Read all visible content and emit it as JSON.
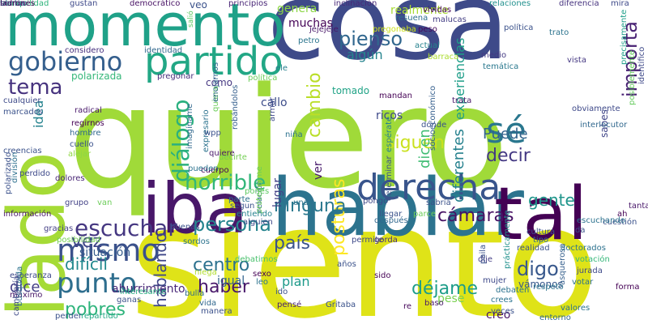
{
  "word_cloud": {
    "words": [
      {
        "text": "quiero",
        "color": "#a0da39",
        "rot": 0
      },
      {
        "text": "siento",
        "color": "#dfe318",
        "rot": 0
      },
      {
        "text": "cosa",
        "color": "#3e4a89",
        "rot": 0
      },
      {
        "text": "hablar",
        "color": "#2c738e",
        "rot": 0
      },
      {
        "text": "momento",
        "color": "#1fa188",
        "rot": 0
      },
      {
        "text": "iba",
        "color": "#481769",
        "rot": 0
      },
      {
        "text": "lado",
        "color": "#a5db36",
        "rot": -90
      },
      {
        "text": "tal",
        "color": "#440154",
        "rot": 0
      },
      {
        "text": "partido",
        "color": "#22a785",
        "rot": 0
      },
      {
        "text": "derecha",
        "color": "#39558c",
        "rot": 0
      },
      {
        "text": "gobierno",
        "color": "#355f8d",
        "rot": 0
      },
      {
        "text": "mismo",
        "color": "#3b518b",
        "rot": 0
      },
      {
        "text": "punto",
        "color": "#2e6e8e",
        "rot": 0
      },
      {
        "text": "sé",
        "color": "#2a778e",
        "rot": 0
      },
      {
        "text": "tema",
        "color": "#46327e",
        "rot": 0
      },
      {
        "text": "importa",
        "color": "#482173",
        "rot": -90
      },
      {
        "text": "diálogo",
        "color": "#2ab07f",
        "rot": -90
      },
      {
        "text": "escuchar",
        "color": "#453781",
        "rot": 0
      },
      {
        "text": "persona",
        "color": "#25848e",
        "rot": 0
      },
      {
        "text": "hablando",
        "color": "#3f4788",
        "rot": -90
      },
      {
        "text": "horrible",
        "color": "#32b67a",
        "rot": 0
      },
      {
        "text": "pienso",
        "color": "#31678e",
        "rot": 0
      },
      {
        "text": "posturas",
        "color": "#fde725",
        "rot": -90
      },
      {
        "text": "cambio",
        "color": "#bade28",
        "rot": -90
      },
      {
        "text": "siguen",
        "color": "#cae11f",
        "rot": 0
      },
      {
        "text": "decir",
        "color": "#443983",
        "rot": 0
      },
      {
        "text": "Puede",
        "color": "#33638d",
        "rot": 0
      },
      {
        "text": "gente",
        "color": "#1f958b",
        "rot": 0
      },
      {
        "text": "ninguna",
        "color": "#2a788e",
        "rot": 0
      },
      {
        "text": "país",
        "color": "#3a538b",
        "rot": 0
      },
      {
        "text": "cámaras",
        "color": "#471365",
        "rot": 0
      },
      {
        "text": "centro",
        "color": "#2c718e",
        "rot": 0
      },
      {
        "text": "digo",
        "color": "#38588c",
        "rot": 0
      },
      {
        "text": "déjame",
        "color": "#1e9d89",
        "rot": 0
      },
      {
        "text": "pobres",
        "color": "#2fb47c",
        "rot": 0
      },
      {
        "text": "difícil",
        "color": "#23898e",
        "rot": 0
      },
      {
        "text": "vez",
        "color": "#404588",
        "rot": 0
      },
      {
        "text": "haber",
        "color": "#48186a",
        "rot": 0
      },
      {
        "text": "dice",
        "color": "#433e85",
        "rot": 0
      },
      {
        "text": "idea",
        "color": "#25838e",
        "rot": -90
      },
      {
        "text": "experiencias",
        "color": "#1f9e89",
        "rot": -90
      },
      {
        "text": "diferentes",
        "color": "#26818e",
        "rot": -90
      },
      {
        "text": "dicen",
        "color": "#3fbc73",
        "rot": -90
      },
      {
        "text": "algún",
        "color": "#25848e",
        "rot": 0
      },
      {
        "text": "genera",
        "color": "#8bd646",
        "rot": 0
      },
      {
        "text": "muchas",
        "color": "#450457",
        "rot": 0
      },
      {
        "text": "callo",
        "color": "#3d4d8a",
        "rot": 0
      },
      {
        "text": "situación",
        "color": "#365c8d",
        "rot": 0
      },
      {
        "text": "plan",
        "color": "#1f9a8a",
        "rot": 0
      },
      {
        "text": "creo",
        "color": "#481467",
        "rot": 0
      },
      {
        "text": "pese",
        "color": "#7ad151",
        "rot": 0
      },
      {
        "text": "ver",
        "color": "#481a6c",
        "rot": -90
      },
      {
        "text": "ricos",
        "color": "#3e4989",
        "rot": 0
      },
      {
        "text": "lugar",
        "color": "#424086",
        "rot": -90
      },
      {
        "text": "vámonos",
        "color": "#38588c",
        "rot": 0
      },
      {
        "text": "aburrimiento",
        "color": "#482878",
        "rot": 0
      },
      {
        "text": "igual",
        "color": "#33638d",
        "rot": 0
      },
      {
        "text": "sabes",
        "color": "#404588",
        "rot": -90
      },
      {
        "text": "realmente",
        "color": "#a8db34",
        "rot": 0
      },
      {
        "text": "polarizada",
        "color": "#35b779",
        "rot": 0
      },
      {
        "text": "tomado",
        "color": "#20a386",
        "rot": 0
      },
      {
        "text": "cómo",
        "color": "#453781",
        "rot": 0
      },
      {
        "text": "tranquilidad",
        "color": "#2fb47c",
        "rot": 0
      },
      {
        "text": "gustan",
        "color": "#3e4989",
        "rot": 0
      },
      {
        "text": "democrático",
        "color": "#471164",
        "rot": 0
      },
      {
        "text": "veo",
        "color": "#3b528b",
        "rot": 0
      },
      {
        "text": "principios",
        "color": "#482576",
        "rot": 0
      },
      {
        "text": "inclinación",
        "color": "#482878",
        "rot": 0
      },
      {
        "text": "relaciones",
        "color": "#21908d",
        "rot": 0
      },
      {
        "text": "diferencia",
        "color": "#46337f",
        "rot": 0
      },
      {
        "text": "mira",
        "color": "#3e4989",
        "rot": 0
      },
      {
        "text": "vividas",
        "color": "#440154",
        "rot": 0
      },
      {
        "text": "malucas",
        "color": "#433d84",
        "rot": 0
      },
      {
        "text": "pregonaba",
        "color": "#cde11d",
        "rot": 0
      },
      {
        "text": "considero",
        "color": "#46307e",
        "rot": 0
      },
      {
        "text": "identidad",
        "color": "#31688e",
        "rot": 0
      },
      {
        "text": "salió",
        "color": "#5ec962",
        "rot": -90
      },
      {
        "text": "resuena",
        "color": "#2d708e",
        "rot": 0
      },
      {
        "text": "peso",
        "color": "#46085c",
        "rot": 0
      },
      {
        "text": "jejejeje",
        "color": "#481769",
        "rot": 0
      },
      {
        "text": "actual",
        "color": "#26828e",
        "rot": 0
      },
      {
        "text": "barraca",
        "color": "#addc30",
        "rot": 0
      },
      {
        "text": "política",
        "color": "#3b528b",
        "rot": 0
      },
      {
        "text": "medio",
        "color": "#443a83",
        "rot": 0
      },
      {
        "text": "temática",
        "color": "#2a788e",
        "rot": 0
      },
      {
        "text": "trato",
        "color": "#2c738e",
        "rot": 0
      },
      {
        "text": "vista",
        "color": "#453882",
        "rot": 0
      },
      {
        "text": "precisamente",
        "color": "#1f9e89",
        "rot": -90
      },
      {
        "text": "posiblemente",
        "color": "#65cb5e",
        "rot": -90
      },
      {
        "text": "identifico",
        "color": "#3e4989",
        "rot": -90
      },
      {
        "text": "petro",
        "color": "#2b758e",
        "rot": 0
      },
      {
        "text": "ele",
        "color": "#27808e",
        "rot": 0
      },
      {
        "text": "pregonar",
        "color": "#472d7b",
        "rot": 0
      },
      {
        "text": "política",
        "color": "#6ccd5a",
        "rot": 0
      },
      {
        "text": "cualquier",
        "color": "#3e4a89",
        "rot": 0
      },
      {
        "text": "marcados",
        "color": "#3b528b",
        "rot": 0
      },
      {
        "text": "radical",
        "color": "#48186a",
        "rot": 0
      },
      {
        "text": "regirnos",
        "color": "#440154",
        "rot": 0
      },
      {
        "text": "hombre",
        "color": "#31688e",
        "rot": 0
      },
      {
        "text": "cuello",
        "color": "#3b528b",
        "rot": 0
      },
      {
        "text": "alejar",
        "color": "#8fd744",
        "rot": 0
      },
      {
        "text": "creencias",
        "color": "#3b528b",
        "rot": 0
      },
      {
        "text": "perdido",
        "color": "#3e4989",
        "rot": 0
      },
      {
        "text": "dolores",
        "color": "#482475",
        "rot": 0
      },
      {
        "text": "división",
        "color": "#2d708e",
        "rot": -90
      },
      {
        "text": "polarizado",
        "color": "#3b518b",
        "rot": -90
      },
      {
        "text": "grupo",
        "color": "#424186",
        "rot": 0
      },
      {
        "text": "van",
        "color": "#6ccd5a",
        "rot": 0
      },
      {
        "text": "información",
        "color": "#481769",
        "rot": 0
      },
      {
        "text": "gracias",
        "color": "#433e85",
        "rot": 0
      },
      {
        "text": "posibilidad",
        "color": "#75d054",
        "rot": 0
      },
      {
        "text": "esperanza",
        "color": "#3e4989",
        "rot": 0
      },
      {
        "text": "máximo",
        "color": "#481769",
        "rot": 0
      },
      {
        "text": "búsqueda",
        "color": "#2c728e",
        "rot": -90
      },
      {
        "text": "cambiaría",
        "color": "#3e4989",
        "rot": -90
      },
      {
        "text": "perder",
        "color": "#3b528b",
        "rot": 0
      },
      {
        "text": "repartido",
        "color": "#22a884",
        "rot": 0
      },
      {
        "text": "interesante",
        "color": "#27ad81",
        "rot": 0
      },
      {
        "text": "ganas",
        "color": "#3b528b",
        "rot": 0
      },
      {
        "text": "bulla",
        "color": "#2f6c8e",
        "rot": 0
      },
      {
        "text": "vida",
        "color": "#31688e",
        "rot": 0
      },
      {
        "text": "manera",
        "color": "#3b518b",
        "rot": 0
      },
      {
        "text": "debatimos",
        "color": "#4ac16d",
        "rot": 0
      },
      {
        "text": "niega",
        "color": "#b2dd2d",
        "rot": 0
      },
      {
        "text": "sordos",
        "color": "#2c738e",
        "rot": 0
      },
      {
        "text": "sexo",
        "color": "#440154",
        "rot": 0
      },
      {
        "text": "leo",
        "color": "#2c728e",
        "rot": 0
      },
      {
        "text": "ido",
        "color": "#3b528b",
        "rot": 0
      },
      {
        "text": "pensé",
        "color": "#482071",
        "rot": 0
      },
      {
        "text": "años",
        "color": "#3b528b",
        "rot": 0
      },
      {
        "text": "Gritaba",
        "color": "#3b528b",
        "rot": 0
      },
      {
        "text": "baso",
        "color": "#481769",
        "rot": 0
      },
      {
        "text": "re",
        "color": "#450559",
        "rot": 0
      },
      {
        "text": "dije",
        "color": "#433e85",
        "rot": 0
      },
      {
        "text": "paila",
        "color": "#3b528b",
        "rot": -90
      },
      {
        "text": "prácticamente",
        "color": "#21918c",
        "rot": -90
      },
      {
        "text": "mujer",
        "color": "#3e4989",
        "rot": 0
      },
      {
        "text": "debaten",
        "color": "#2c728e",
        "rot": 0
      },
      {
        "text": "crees",
        "color": "#2c738e",
        "rot": 0
      },
      {
        "text": "veces",
        "color": "#3b528b",
        "rot": 0
      },
      {
        "text": "entorno",
        "color": "#31688e",
        "rot": 0
      },
      {
        "text": "valores",
        "color": "#2c738e",
        "rot": 0
      },
      {
        "text": "forma",
        "color": "#440154",
        "rot": 0
      },
      {
        "text": "votar",
        "color": "#2d708e",
        "rot": 0
      },
      {
        "text": "votación",
        "color": "#35b779",
        "rot": 0
      },
      {
        "text": "jurada",
        "color": "#3e4989",
        "rot": 0
      },
      {
        "text": "asquerosa",
        "color": "#355f8d",
        "rot": -90
      },
      {
        "text": "respeto",
        "color": "#2c728e",
        "rot": 0
      },
      {
        "text": "sido",
        "color": "#440154",
        "rot": 0
      },
      {
        "text": "permite",
        "color": "#3e4989",
        "rot": 0
      },
      {
        "text": "gorda",
        "color": "#46307e",
        "rot": 0
      },
      {
        "text": "cultura",
        "color": "#3b528b",
        "rot": 0
      },
      {
        "text": "tipo",
        "color": "#31688e",
        "rot": 0
      },
      {
        "text": "doctorados",
        "color": "#2c728e",
        "rot": 0
      },
      {
        "text": "realidad",
        "color": "#3b528b",
        "rot": 0
      },
      {
        "text": "ah",
        "color": "#440154",
        "rot": 0
      },
      {
        "text": "tantas",
        "color": "#481769",
        "rot": 0
      },
      {
        "text": "cuestión",
        "color": "#3b528b",
        "rot": 0
      },
      {
        "text": "escuchando",
        "color": "#2c728e",
        "rot": 0
      },
      {
        "text": "da",
        "color": "#3b528b",
        "rot": 0
      },
      {
        "text": "interlocutor",
        "color": "#31688e",
        "rot": 0
      },
      {
        "text": "obviamente",
        "color": "#3e4989",
        "rot": 0
      },
      {
        "text": "espérate",
        "color": "#26828e",
        "rot": -90
      },
      {
        "text": "socioeconómico",
        "color": "#355f8d",
        "rot": -90
      },
      {
        "text": "determinar",
        "color": "#3b528b",
        "rot": -90
      },
      {
        "text": "después",
        "color": "#31688e",
        "rot": 0
      },
      {
        "text": "parce",
        "color": "#6ccd5a",
        "rot": 0
      },
      {
        "text": "sabría",
        "color": "#3b528b",
        "rot": 0
      },
      {
        "text": "llegar",
        "color": "#3b528b",
        "rot": 0
      },
      {
        "text": "pongo",
        "color": "#3e4989",
        "rot": 0
      },
      {
        "text": "unas",
        "color": "#2c728e",
        "rot": 0
      },
      {
        "text": "pones",
        "color": "#5ec962",
        "rot": 0
      },
      {
        "text": "parte",
        "color": "#2c728e",
        "rot": 0
      },
      {
        "text": "relación",
        "color": "#31688e",
        "rot": -90
      },
      {
        "text": "protegerme",
        "color": "#6ccd5a",
        "rot": -90
      },
      {
        "text": "entiendo",
        "color": "#26828e",
        "rot": 0
      },
      {
        "text": "segun",
        "color": "#3b528b",
        "rot": 0
      },
      {
        "text": "alguien",
        "color": "#3e4989",
        "rot": 0
      },
      {
        "text": "decirte",
        "color": "#75d054",
        "rot": 0
      },
      {
        "text": "cuerpo",
        "color": "#440154",
        "rot": 0
      },
      {
        "text": "quiere",
        "color": "#481769",
        "rot": 0
      },
      {
        "text": "buenas",
        "color": "#3b528b",
        "rot": 0
      },
      {
        "text": "pueden",
        "color": "#2c728e",
        "rot": 0
      },
      {
        "text": "imagíname",
        "color": "#31688e",
        "rot": -90
      },
      {
        "text": "expresario",
        "color": "#2c728e",
        "rot": -90
      },
      {
        "text": "wpp",
        "color": "#3b528b",
        "rot": 0
      },
      {
        "text": "armar",
        "color": "#3e4989",
        "rot": -90
      },
      {
        "text": "quiera",
        "color": "#6ccd5a",
        "rot": -90
      },
      {
        "text": "robándolos",
        "color": "#355f8d",
        "rot": -90
      },
      {
        "text": "enojarnos",
        "color": "#31688e",
        "rot": -90
      },
      {
        "text": "niña",
        "color": "#2c728e",
        "rot": 0
      },
      {
        "text": "mandan",
        "color": "#440154",
        "rot": 0
      },
      {
        "text": "dónde",
        "color": "#3b528b",
        "rot": 0
      },
      {
        "text": "trata",
        "color": "#481769",
        "rot": 0
      },
      {
        "text": "blanco",
        "color": "#2c728e",
        "rot": 0
      },
      {
        "text": "sentía",
        "color": "#3b528b",
        "rot": 0
      },
      {
        "text": "izquierda",
        "color": "#31688e",
        "rot": -90
      },
      {
        "text": "correría",
        "color": "#3e4989",
        "rot": -90
      },
      {
        "text": "ladrones",
        "color": "#440154",
        "rot": 0
      }
    ]
  }
}
